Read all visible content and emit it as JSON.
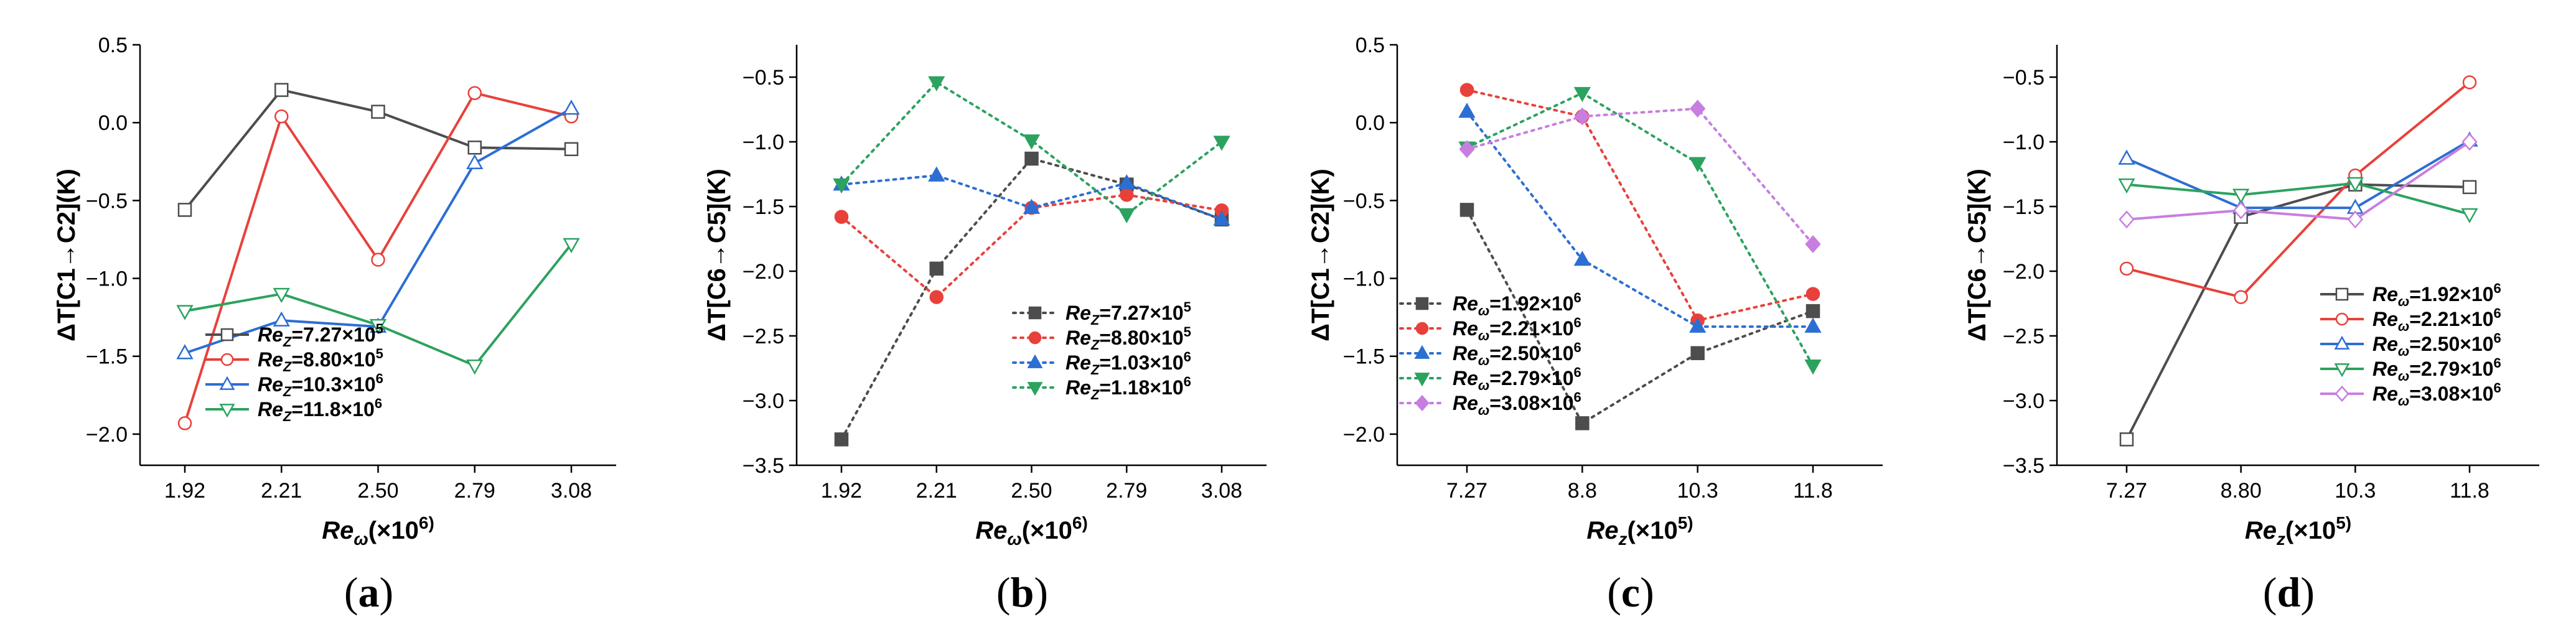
{
  "chart_data": [
    {
      "panel_label": "(a)",
      "type": "line",
      "line_style": "solid",
      "marker_fill": "open",
      "xlabel": "Re_ω(×10^6)",
      "ylabel": "ΔT[C1→C2](K)",
      "categories": [
        "1.92",
        "2.21",
        "2.50",
        "2.79",
        "3.08"
      ],
      "ylim": [
        -2.2,
        0.5
      ],
      "yticks": [
        0.5,
        0.0,
        -0.5,
        -1.0,
        -1.5,
        -2.0
      ],
      "ytick_labels": [
        "0.5",
        "0.0",
        "−0.5",
        "−1.0",
        "−1.5",
        "−2.0"
      ],
      "legend_position": "bottom-right",
      "series": [
        {
          "name": "Re_Z=7.27×10^5",
          "color": "#4d4d4d",
          "marker": "square",
          "values": [
            -0.56,
            0.21,
            0.07,
            -0.16,
            -0.17
          ]
        },
        {
          "name": "Re_Z=8.80×10^5",
          "color": "#e8413b",
          "marker": "circle",
          "values": [
            -1.93,
            0.04,
            -0.88,
            0.19,
            0.04
          ]
        },
        {
          "name": "Re_Z=10.3×10^6",
          "color": "#2d6ed3",
          "marker": "triangle-up",
          "values": [
            -1.48,
            -1.27,
            -1.31,
            -0.26,
            0.09
          ]
        },
        {
          "name": "Re_Z=11.8×10^6",
          "color": "#2ca25f",
          "marker": "triangle-down",
          "values": [
            -1.21,
            -1.1,
            -1.3,
            -1.56,
            -0.78
          ]
        }
      ]
    },
    {
      "panel_label": "(b)",
      "type": "line",
      "line_style": "dotted",
      "marker_fill": "filled",
      "xlabel": "Re_ω(×10^6)",
      "ylabel": "ΔT[C6→C5](K)",
      "categories": [
        "1.92",
        "2.21",
        "2.50",
        "2.79",
        "3.08"
      ],
      "ylim": [
        -3.5,
        -0.25
      ],
      "yticks": [
        -0.5,
        -1.0,
        -1.5,
        -2.0,
        -2.5,
        -3.0,
        -3.5
      ],
      "ytick_labels": [
        "−0.5",
        "−1.0",
        "−1.5",
        "−2.0",
        "−2.5",
        "−3.0",
        "−3.5"
      ],
      "legend_position": "bottom-right",
      "series": [
        {
          "name": "Re_Z=7.27×10^5",
          "color": "#4d4d4d",
          "marker": "square",
          "values": [
            -3.3,
            -1.98,
            -1.13,
            -1.33,
            -1.6
          ]
        },
        {
          "name": "Re_Z=8.80×10^5",
          "color": "#e8413b",
          "marker": "circle",
          "values": [
            -1.58,
            -2.2,
            -1.51,
            -1.41,
            -1.53
          ]
        },
        {
          "name": "Re_Z=1.03×10^6",
          "color": "#2d6ed3",
          "marker": "triangle-up",
          "values": [
            -1.33,
            -1.26,
            -1.51,
            -1.32,
            -1.6
          ]
        },
        {
          "name": "Re_Z=1.18×10^6",
          "color": "#2ca25f",
          "marker": "triangle-down",
          "values": [
            -1.33,
            -0.54,
            -0.99,
            -1.56,
            -1.0
          ]
        }
      ]
    },
    {
      "panel_label": "(c)",
      "type": "line",
      "line_style": "dotted",
      "marker_fill": "filled",
      "xlabel": "Re_z(×10^5)",
      "ylabel": "ΔT[C1→C2](K)",
      "categories": [
        "7.27",
        "8.8",
        "10.3",
        "11.8"
      ],
      "ylim": [
        -2.2,
        0.5
      ],
      "yticks": [
        0.5,
        0.0,
        -0.5,
        -1.0,
        -1.5,
        -2.0
      ],
      "ytick_labels": [
        "0.5",
        "0.0",
        "−0.5",
        "−1.0",
        "−1.5",
        "−2.0"
      ],
      "legend_position": "bottom-left",
      "series": [
        {
          "name": "Re_ω=1.92×10^6",
          "color": "#4d4d4d",
          "marker": "square",
          "values": [
            -0.56,
            -1.93,
            -1.48,
            -1.21
          ]
        },
        {
          "name": "Re_ω=2.21×10^6",
          "color": "#e8413b",
          "marker": "circle",
          "values": [
            0.21,
            0.04,
            -1.27,
            -1.1
          ]
        },
        {
          "name": "Re_ω=2.50×10^6",
          "color": "#2d6ed3",
          "marker": "triangle-up",
          "values": [
            0.07,
            -0.88,
            -1.31,
            -1.31
          ]
        },
        {
          "name": "Re_ω=2.79×10^6",
          "color": "#2ca25f",
          "marker": "triangle-down",
          "values": [
            -0.16,
            0.19,
            -0.26,
            -1.56
          ]
        },
        {
          "name": "Re_ω=3.08×10^6",
          "color": "#c77ee0",
          "marker": "diamond",
          "values": [
            -0.17,
            0.04,
            0.09,
            -0.78
          ]
        }
      ]
    },
    {
      "panel_label": "(d)",
      "type": "line",
      "line_style": "solid",
      "marker_fill": "open",
      "xlabel": "Re_z(×10^5)",
      "ylabel": "ΔT[C6→C5](K)",
      "categories": [
        "7.27",
        "8.80",
        "10.3",
        "11.8"
      ],
      "ylim": [
        -3.5,
        -0.25
      ],
      "yticks": [
        -0.5,
        -1.0,
        -1.5,
        -2.0,
        -2.5,
        -3.0,
        -3.5
      ],
      "ytick_labels": [
        "−0.5",
        "−1.0",
        "−1.5",
        "−2.0",
        "−2.5",
        "−3.0",
        "−3.5"
      ],
      "legend_position": "bottom-right",
      "series": [
        {
          "name": "Re_ω=1.92×10^6",
          "color": "#4d4d4d",
          "marker": "square",
          "values": [
            -3.3,
            -1.58,
            -1.33,
            -1.35
          ]
        },
        {
          "name": "Re_ω=2.21×10^6",
          "color": "#e8413b",
          "marker": "circle",
          "values": [
            -1.98,
            -2.2,
            -1.26,
            -0.54
          ]
        },
        {
          "name": "Re_ω=2.50×10^6",
          "color": "#2d6ed3",
          "marker": "triangle-up",
          "values": [
            -1.13,
            -1.51,
            -1.51,
            -0.99
          ]
        },
        {
          "name": "Re_ω=2.79×10^6",
          "color": "#2ca25f",
          "marker": "triangle-down",
          "values": [
            -1.33,
            -1.41,
            -1.32,
            -1.56
          ]
        },
        {
          "name": "Re_ω=3.08×10^6",
          "color": "#c77ee0",
          "marker": "diamond",
          "values": [
            -1.6,
            -1.53,
            -1.6,
            -1.0
          ]
        }
      ]
    }
  ]
}
